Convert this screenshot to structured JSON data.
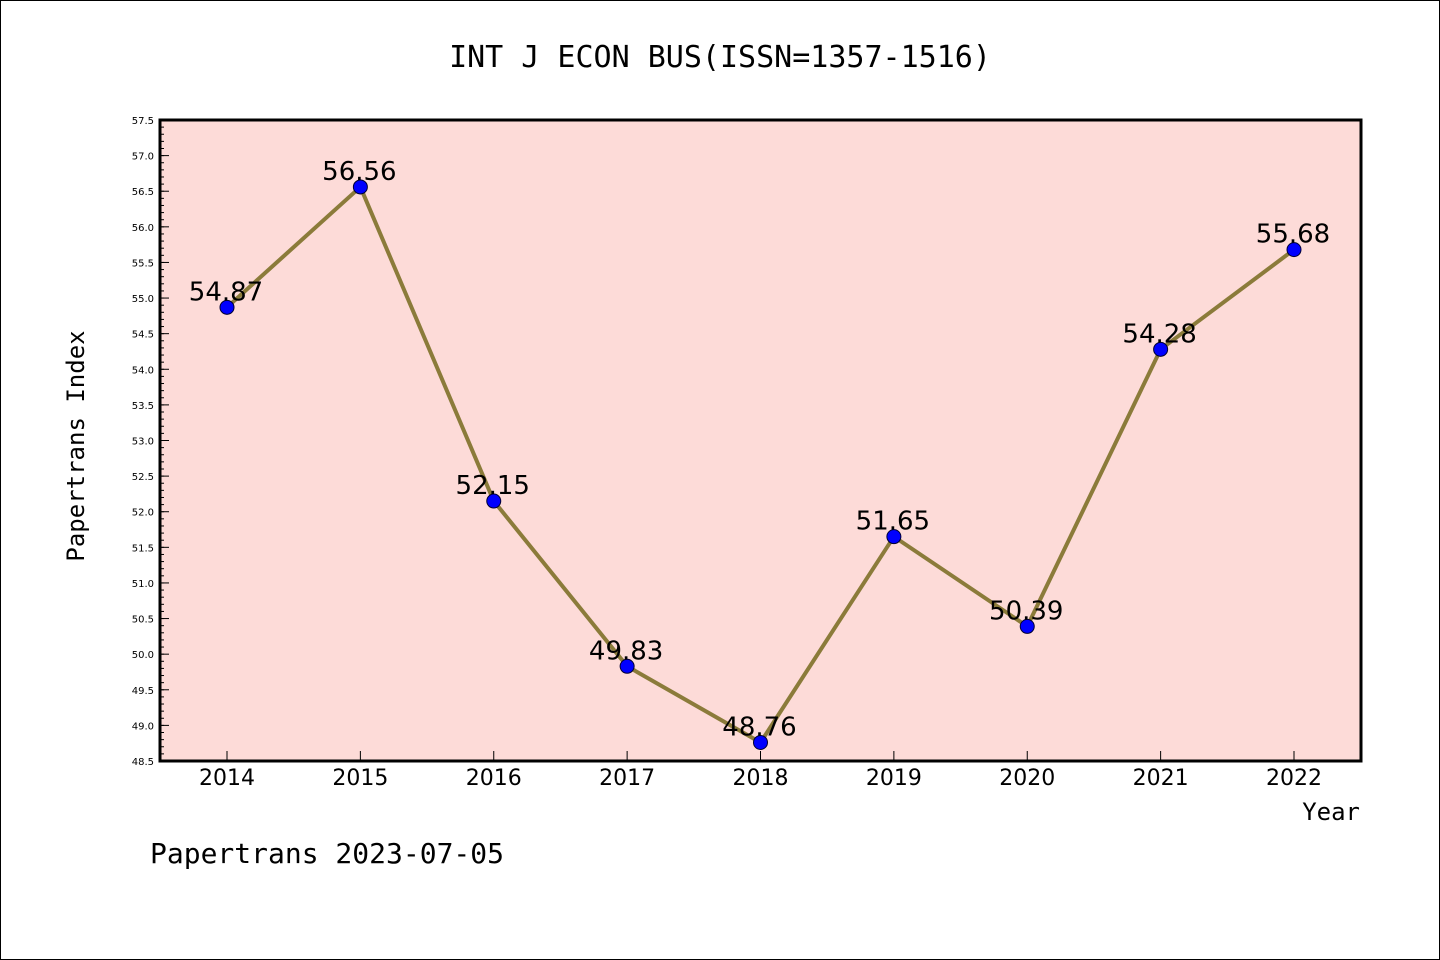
{
  "chart_data": {
    "type": "line",
    "title": "INT J ECON BUS(ISSN=1357-1516)",
    "xlabel": "Year",
    "ylabel": "Papertrans Index",
    "categories": [
      "2014",
      "2015",
      "2016",
      "2017",
      "2018",
      "2019",
      "2020",
      "2021",
      "2022"
    ],
    "values": [
      54.87,
      56.56,
      52.15,
      49.83,
      48.76,
      51.65,
      50.39,
      54.28,
      55.68
    ],
    "data_labels": [
      "54.87",
      "56.56",
      "52.15",
      "49.83",
      "48.76",
      "51.65",
      "50.39",
      "54.28",
      "55.68"
    ],
    "ylim": [
      48.5,
      57.5
    ],
    "yticks": [
      "48.5",
      "49.0",
      "49.5",
      "50.0",
      "50.5",
      "51.0",
      "51.5",
      "52.0",
      "52.5",
      "53.0",
      "53.5",
      "54.0",
      "54.5",
      "55.0",
      "55.5",
      "56.0",
      "56.5",
      "57.0",
      "57.5"
    ],
    "grid": false,
    "colors": {
      "plot_background": "#fddbd8",
      "line": "#8b7b3a",
      "marker": "#0000ff",
      "axes": "#000000"
    },
    "footer": "Papertrans 2023-07-05"
  }
}
